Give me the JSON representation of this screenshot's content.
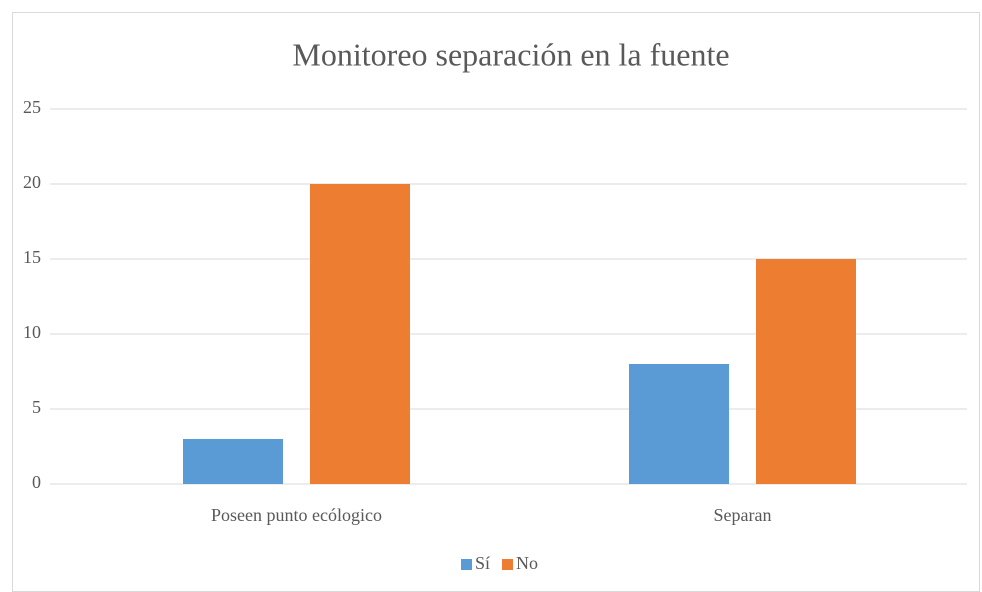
{
  "chart_data": {
    "type": "bar",
    "title": "Monitoreo separación en la fuente",
    "categories": [
      "Poseen punto ecólogico",
      "Separan"
    ],
    "series": [
      {
        "name": "Sí",
        "color": "#5b9bd5",
        "values": [
          3,
          8
        ]
      },
      {
        "name": "No",
        "color": "#ed7d31",
        "values": [
          20,
          15
        ]
      }
    ],
    "ylim": [
      0,
      25
    ],
    "yticks": [
      0,
      5,
      10,
      15,
      20,
      25
    ],
    "grid": true,
    "legend": "bottom"
  }
}
